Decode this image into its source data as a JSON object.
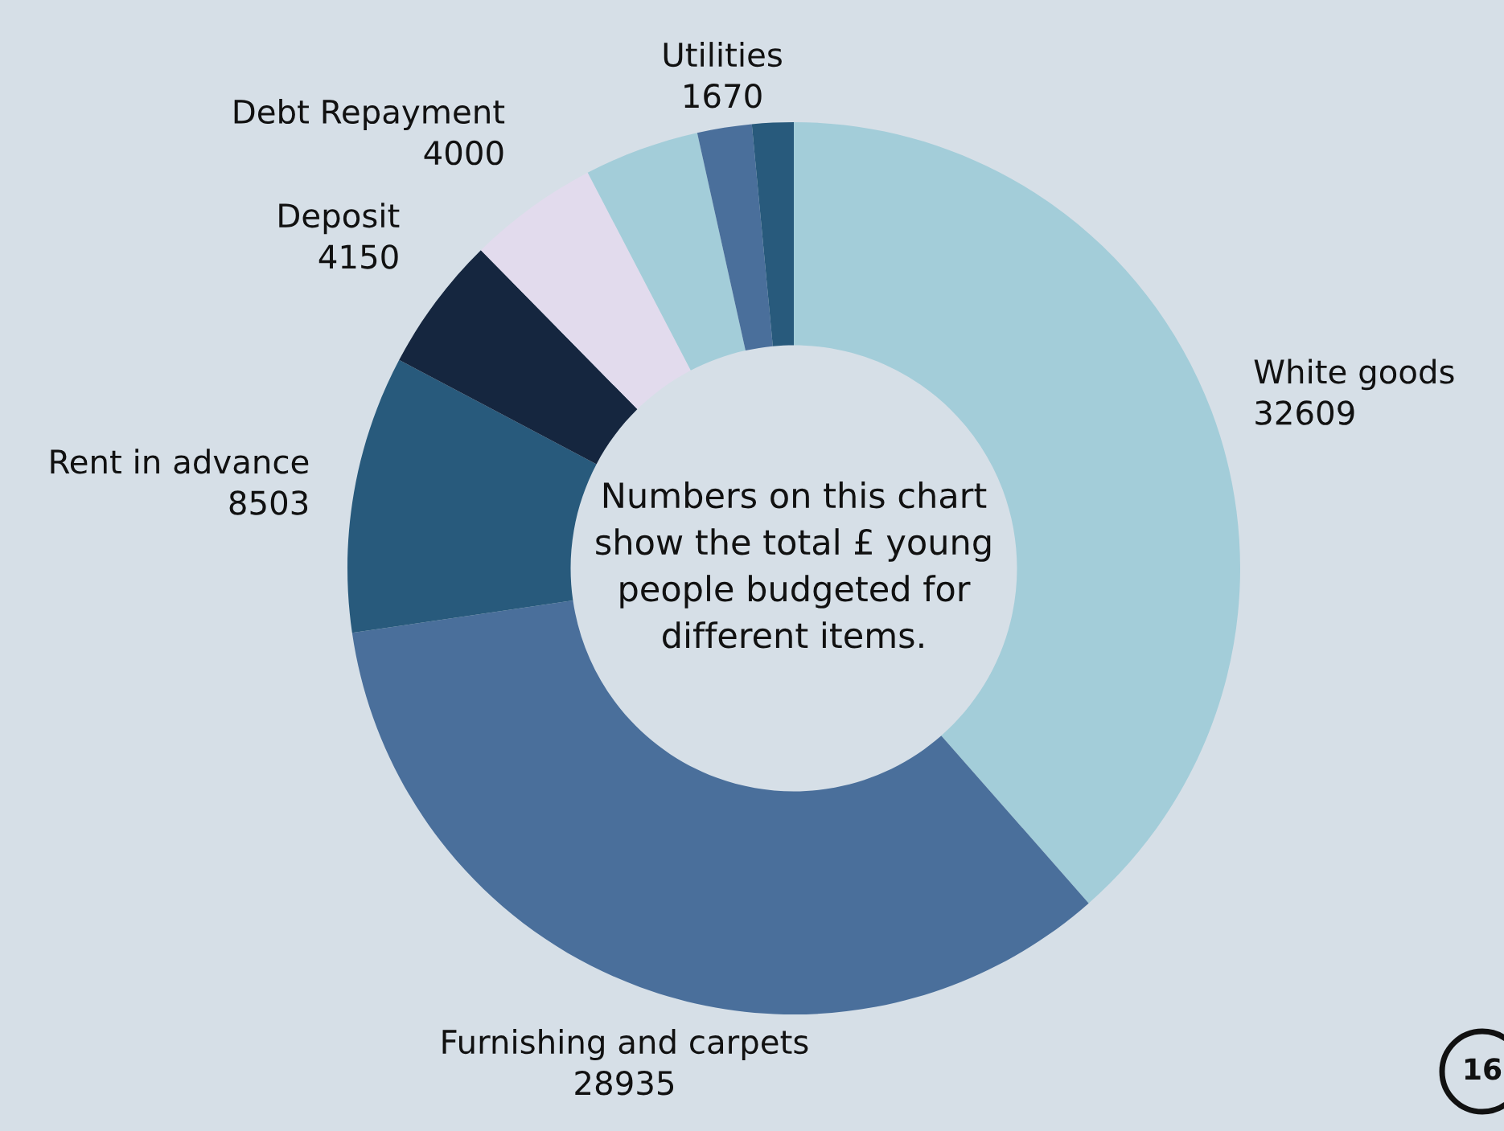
{
  "chart_data": {
    "type": "donut",
    "categories": [
      "White goods",
      "Furnishing and carpets",
      "Rent in advance",
      "Deposit",
      "Debt Repayment",
      null,
      "Utilities",
      null
    ],
    "values": [
      32609,
      28935,
      8503,
      4150,
      4000,
      3528,
      1670,
      1270
    ],
    "value_labels": [
      "32609",
      "28935",
      "8503",
      "4150",
      "4000",
      null,
      "1670",
      null
    ],
    "colors": [
      "#a3cdd9",
      "#4a6f9b",
      "#285a7c",
      "#15263f",
      "#e2dbed",
      "#a3cdd9",
      "#4a6f9b",
      "#285a7c"
    ],
    "annotations": [
      "Numbers on this chart show the total £ young people budgeted for different items.",
      "16"
    ],
    "legend": false
  }
}
